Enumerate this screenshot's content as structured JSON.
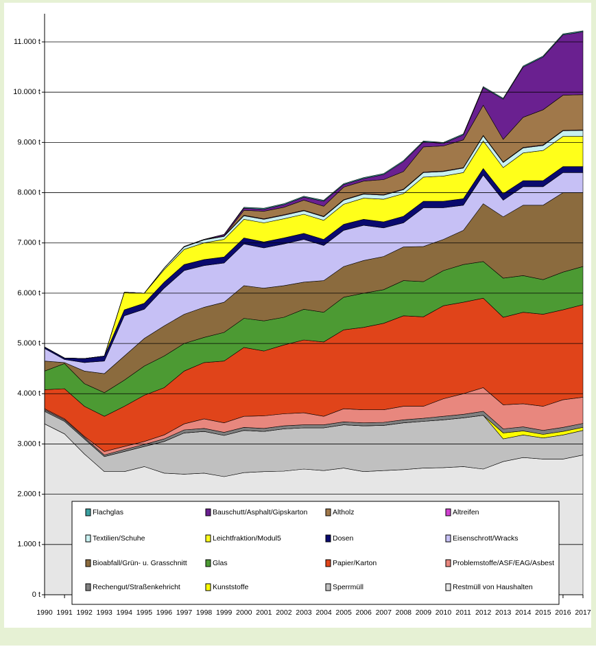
{
  "chart_data": {
    "type": "stacked_area",
    "categories": [
      "1990",
      "1991",
      "1992",
      "1993",
      "1994",
      "1995",
      "1996",
      "1997",
      "1998",
      "1999",
      "2000",
      "2001",
      "2002",
      "2003",
      "2004",
      "2005",
      "2006",
      "2007",
      "2008",
      "2009",
      "2010",
      "2011",
      "2012",
      "2013",
      "2014",
      "2015",
      "2016",
      "2017"
    ],
    "series": [
      {
        "name": "Flachglas",
        "color": "#3aa0a0",
        "values": [
          0,
          0,
          0,
          0,
          0,
          0,
          0,
          0,
          0,
          0,
          20,
          20,
          20,
          20,
          20,
          20,
          20,
          20,
          20,
          20,
          20,
          20,
          20,
          20,
          20,
          20,
          20,
          20
        ]
      },
      {
        "name": "Bauschutt/Asphalt/Gipskarton",
        "color": "#6a2090",
        "values": [
          0,
          0,
          0,
          0,
          0,
          0,
          0,
          0,
          0,
          30,
          40,
          40,
          50,
          60,
          100,
          50,
          50,
          100,
          200,
          100,
          50,
          100,
          350,
          800,
          1000,
          1050,
          1200,
          1250
        ]
      },
      {
        "name": "Altholz",
        "color": "#a0784a",
        "values": [
          0,
          0,
          0,
          0,
          0,
          0,
          0,
          0,
          0,
          0,
          100,
          150,
          150,
          200,
          200,
          250,
          250,
          300,
          350,
          500,
          500,
          550,
          600,
          450,
          600,
          700,
          700,
          700
        ]
      },
      {
        "name": "Altreifen",
        "color": "#d040d0",
        "values": [
          0,
          0,
          0,
          0,
          0,
          0,
          0,
          10,
          10,
          10,
          10,
          10,
          10,
          10,
          10,
          10,
          10,
          10,
          10,
          10,
          10,
          10,
          10,
          10,
          10,
          10,
          10,
          10
        ]
      },
      {
        "name": "Textilien/Schuhe",
        "color": "#c8f0f0",
        "values": [
          0,
          0,
          0,
          0,
          0,
          0,
          30,
          50,
          60,
          60,
          70,
          70,
          70,
          70,
          70,
          80,
          80,
          80,
          80,
          90,
          90,
          90,
          100,
          100,
          100,
          100,
          110,
          120
        ]
      },
      {
        "name": "Leichtfraktion/Modul5",
        "color": "#ffff1a",
        "values": [
          0,
          0,
          0,
          0,
          350,
          200,
          250,
          300,
          330,
          350,
          370,
          380,
          380,
          380,
          380,
          400,
          420,
          450,
          450,
          480,
          500,
          520,
          550,
          520,
          550,
          600,
          600,
          600
        ]
      },
      {
        "name": "Dosen",
        "color": "#0a0a6e",
        "values": [
          30,
          30,
          80,
          100,
          120,
          120,
          120,
          120,
          120,
          120,
          120,
          120,
          120,
          120,
          120,
          120,
          120,
          120,
          130,
          130,
          130,
          130,
          130,
          130,
          120,
          120,
          120,
          120
        ]
      },
      {
        "name": "Eisenschrott/Wracks",
        "color": "#c6c0f5",
        "values": [
          250,
          60,
          170,
          250,
          800,
          580,
          750,
          870,
          830,
          780,
          830,
          800,
          830,
          850,
          700,
          720,
          700,
          570,
          480,
          770,
          630,
          500,
          570,
          330,
          370,
          370,
          400,
          400
        ]
      },
      {
        "name": "Bioabfall/Grün- u. Grasschnitt",
        "color": "#8b6b3e",
        "values": [
          200,
          20,
          250,
          380,
          480,
          550,
          600,
          580,
          600,
          600,
          650,
          650,
          630,
          540,
          630,
          610,
          650,
          660,
          670,
          700,
          620,
          680,
          1150,
          1220,
          1400,
          1480,
          1580,
          1470
        ]
      },
      {
        "name": "Glas",
        "color": "#4c9a33",
        "values": [
          370,
          500,
          450,
          470,
          520,
          580,
          630,
          550,
          500,
          570,
          580,
          600,
          550,
          610,
          590,
          650,
          680,
          670,
          700,
          700,
          700,
          750,
          730,
          780,
          730,
          690,
          750,
          760
        ]
      },
      {
        "name": "Papier/Karton",
        "color": "#e0441a",
        "values": [
          380,
          600,
          600,
          700,
          800,
          920,
          940,
          1050,
          1120,
          1230,
          1370,
          1290,
          1370,
          1450,
          1480,
          1570,
          1640,
          1720,
          1800,
          1780,
          1850,
          1820,
          1780,
          1740,
          1820,
          1830,
          1790,
          1840
        ]
      },
      {
        "name": "Problemstoffe/ASF/EAG/Asbest",
        "color": "#e8877e",
        "values": [
          20,
          20,
          20,
          70,
          60,
          60,
          80,
          120,
          190,
          190,
          220,
          250,
          240,
          240,
          170,
          260,
          260,
          250,
          270,
          240,
          350,
          410,
          470,
          480,
          460,
          480,
          550,
          520
        ]
      },
      {
        "name": "Rechengut/Straßenkehricht",
        "color": "#808080",
        "values": [
          30,
          30,
          30,
          30,
          40,
          40,
          50,
          60,
          60,
          60,
          60,
          60,
          60,
          60,
          60,
          60,
          60,
          60,
          60,
          60,
          70,
          70,
          80,
          80,
          80,
          80,
          80,
          80
        ]
      },
      {
        "name": "Kunststoffe",
        "color": "#ffff00",
        "values": [
          0,
          0,
          0,
          0,
          0,
          0,
          0,
          0,
          0,
          0,
          0,
          0,
          0,
          0,
          0,
          0,
          0,
          0,
          0,
          0,
          0,
          0,
          0,
          120,
          80,
          70,
          70,
          60
        ]
      },
      {
        "name": "Sperrmüll",
        "color": "#c0c0c0",
        "values": [
          250,
          250,
          300,
          300,
          400,
          400,
          630,
          820,
          830,
          820,
          840,
          800,
          840,
          820,
          850,
          860,
          910,
          900,
          930,
          930,
          950,
          970,
          1070,
          450,
          450,
          420,
          480,
          490
        ]
      },
      {
        "name": "Restmüll von Haushalten",
        "color": "#e6e6e6",
        "values": [
          3400,
          3200,
          2800,
          2450,
          2450,
          2550,
          2420,
          2400,
          2420,
          2350,
          2430,
          2450,
          2460,
          2500,
          2470,
          2520,
          2450,
          2470,
          2490,
          2520,
          2530,
          2550,
          2500,
          2650,
          2730,
          2700,
          2700,
          2780
        ]
      }
    ],
    "ylim": [
      0,
      11000
    ],
    "yticks": [
      {
        "value": 0,
        "label": "0 t"
      },
      {
        "value": 1000,
        "label": "1.000 t"
      },
      {
        "value": 2000,
        "label": "2.000 t"
      },
      {
        "value": 3000,
        "label": "3.000 t"
      },
      {
        "value": 4000,
        "label": "4.000 t"
      },
      {
        "value": 5000,
        "label": "5.000 t"
      },
      {
        "value": 6000,
        "label": "6.000 t"
      },
      {
        "value": 7000,
        "label": "7.000 t"
      },
      {
        "value": 8000,
        "label": "8.000 t"
      },
      {
        "value": 9000,
        "label": "9.000 t"
      },
      {
        "value": 10000,
        "label": "10.000 t"
      },
      {
        "value": 11000,
        "label": "11.000 t"
      }
    ],
    "grid": true,
    "legend": "bottom"
  }
}
